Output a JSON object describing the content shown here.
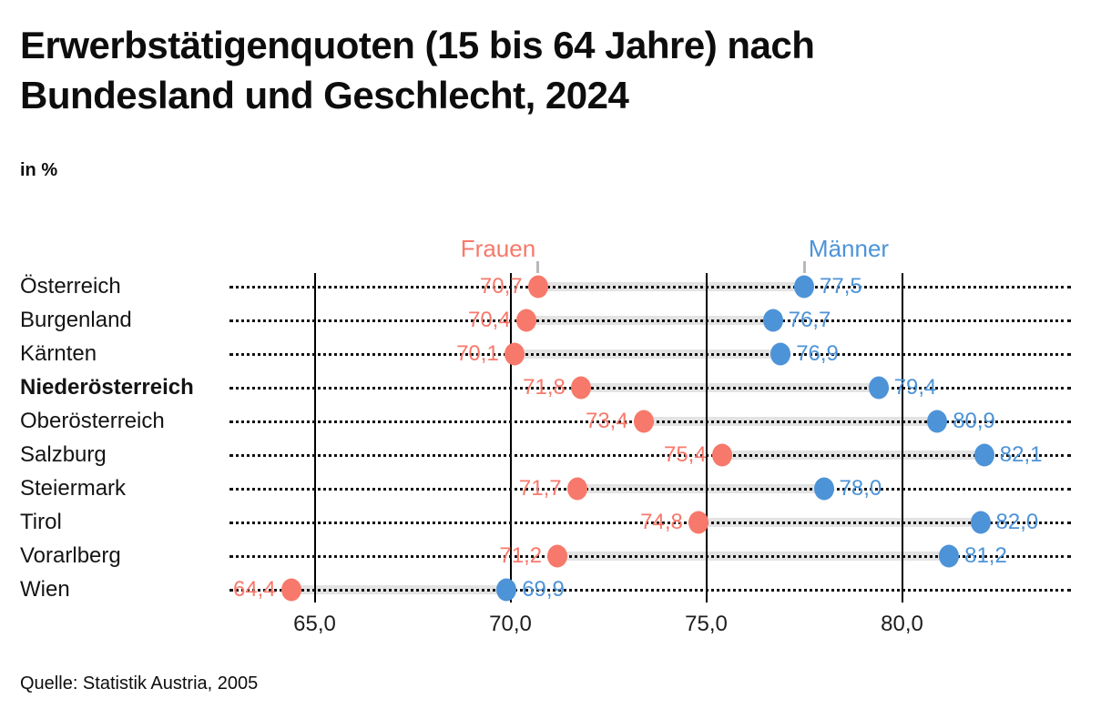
{
  "header": {
    "title_line1": "Erwerbstätigenquoten (15 bis 64 Jahre) nach",
    "title_line2": "Bundesland und Geschlecht, 2024",
    "unit_label": "in %"
  },
  "legend": {
    "frauen_label": "Frauen",
    "maenner_label": "Männer"
  },
  "footer": {
    "source": "Quelle: Statistik Austria, 2005"
  },
  "colors": {
    "frauen": "#F7796B",
    "maenner": "#4D93D8",
    "connector": "#E3E3E3",
    "leader_dots": "#121212",
    "gridline": "#000000",
    "legend_tick": "#B8B8B8",
    "text": "#0D0D0D"
  },
  "chart_data": {
    "type": "scatter",
    "subtype": "dumbbell",
    "title": "Erwerbstätigenquoten (15 bis 64 Jahre) nach Bundesland und Geschlecht, 2024",
    "unit": "in %",
    "categories": [
      "Österreich",
      "Burgenland",
      "Kärnten",
      "Niederösterreich",
      "Oberösterreich",
      "Salzburg",
      "Steiermark",
      "Tirol",
      "Vorarlberg",
      "Wien"
    ],
    "bold_category": "Niederösterreich",
    "series": [
      {
        "name": "Frauen",
        "color": "#F7796B",
        "values": [
          70.7,
          70.4,
          70.1,
          71.8,
          73.4,
          75.4,
          71.7,
          74.8,
          71.2,
          64.4
        ],
        "labels": [
          "70,7",
          "70,4",
          "70,1",
          "71,8",
          "73,4",
          "75,4",
          "71,7",
          "74,8",
          "71,2",
          "64,4"
        ]
      },
      {
        "name": "Männer",
        "color": "#4D93D8",
        "values": [
          77.5,
          76.7,
          76.9,
          79.4,
          80.9,
          82.1,
          78.0,
          82.0,
          81.2,
          69.9
        ],
        "labels": [
          "77,5",
          "76,7",
          "76,9",
          "79,4",
          "80,9",
          "82,1",
          "78,0",
          "82,0",
          "81,2",
          "69,9"
        ]
      }
    ],
    "x_axis": {
      "ticks": [
        65,
        70,
        75,
        80
      ],
      "tick_labels": [
        "65,0",
        "70,0",
        "75,0",
        "80,0"
      ],
      "range_min": 62.8,
      "range_max": 84.3
    },
    "grid": "vertical solid gridlines at ticks; horizontal dotted leader line per category",
    "legend_position": "top, pointing to first-row markers",
    "value_labels": "Frauen left of marker, Männer right of marker, German decimal comma"
  }
}
